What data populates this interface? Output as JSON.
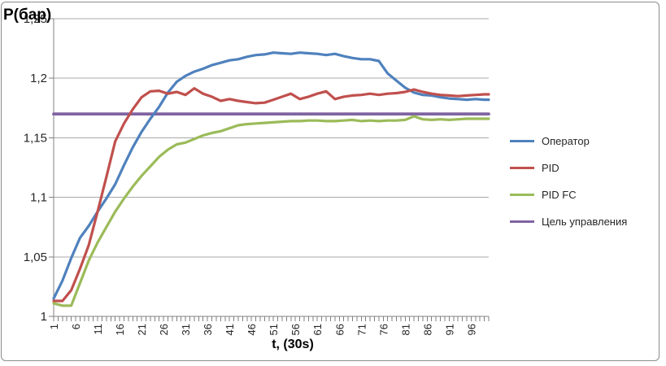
{
  "chart_data": {
    "type": "line",
    "ylabel": "Р(бар)",
    "xlabel": "t, (30s)",
    "grid": true,
    "legend_position": "right",
    "xlim": [
      1,
      100
    ],
    "ylim": [
      1.0,
      1.25
    ],
    "xtick_values": [
      1,
      6,
      11,
      16,
      21,
      26,
      31,
      36,
      41,
      46,
      51,
      56,
      61,
      66,
      71,
      76,
      81,
      86,
      91,
      96
    ],
    "xtick_labels": [
      "1",
      "6",
      "11",
      "16",
      "21",
      "26",
      "31",
      "36",
      "41",
      "46",
      "51",
      "56",
      "61",
      "66",
      "71",
      "76",
      "81",
      "86",
      "91",
      "96"
    ],
    "ytick_values": [
      1.0,
      1.05,
      1.1,
      1.15,
      1.2,
      1.25
    ],
    "ytick_labels": [
      "1",
      "1,05",
      "1,1",
      "1,15",
      "1,2",
      "1,25"
    ],
    "minor_xtick_step": 1,
    "grid_color": "#a8a8a8",
    "axis_color": "#808080",
    "tick_label_color": "#262626",
    "x": [
      1,
      3,
      5,
      7,
      9,
      11,
      13,
      15,
      17,
      19,
      21,
      23,
      25,
      27,
      29,
      31,
      33,
      35,
      37,
      39,
      41,
      43,
      45,
      47,
      49,
      51,
      53,
      55,
      57,
      59,
      61,
      63,
      65,
      67,
      69,
      71,
      73,
      75,
      77,
      79,
      81,
      83,
      85,
      87,
      89,
      91,
      93,
      95,
      97,
      99,
      100
    ],
    "series": [
      {
        "id": "operator",
        "name": "Оператор",
        "color": "#4F81BD",
        "values": [
          1.015,
          1.03,
          1.049,
          1.066,
          1.076,
          1.088,
          1.099,
          1.111,
          1.127,
          1.142,
          1.155,
          1.166,
          1.176,
          1.188,
          1.197,
          1.202,
          1.2055,
          1.208,
          1.211,
          1.213,
          1.215,
          1.216,
          1.218,
          1.2195,
          1.22,
          1.2215,
          1.221,
          1.2205,
          1.2215,
          1.221,
          1.2205,
          1.2195,
          1.2205,
          1.2185,
          1.217,
          1.216,
          1.216,
          1.2145,
          1.204,
          1.198,
          1.192,
          1.188,
          1.186,
          1.1855,
          1.184,
          1.183,
          1.1825,
          1.182,
          1.1825,
          1.182,
          1.182
        ]
      },
      {
        "id": "pid",
        "name": "PID",
        "color": "#C0504D",
        "values": [
          1.013,
          1.013,
          1.022,
          1.04,
          1.06,
          1.088,
          1.117,
          1.147,
          1.162,
          1.174,
          1.184,
          1.189,
          1.1895,
          1.187,
          1.1885,
          1.186,
          1.1915,
          1.187,
          1.1845,
          1.181,
          1.1825,
          1.181,
          1.18,
          1.179,
          1.1795,
          1.182,
          1.1845,
          1.187,
          1.1825,
          1.1845,
          1.187,
          1.189,
          1.1825,
          1.1845,
          1.1855,
          1.186,
          1.187,
          1.186,
          1.187,
          1.1875,
          1.1885,
          1.1905,
          1.1885,
          1.187,
          1.186,
          1.1855,
          1.185,
          1.1855,
          1.186,
          1.1865,
          1.1865
        ]
      },
      {
        "id": "pid-fc",
        "name": "PID FC",
        "color": "#9BBB59",
        "values": [
          1.011,
          1.009,
          1.009,
          1.028,
          1.047,
          1.062,
          1.075,
          1.088,
          1.099,
          1.109,
          1.118,
          1.126,
          1.134,
          1.14,
          1.1445,
          1.146,
          1.149,
          1.152,
          1.154,
          1.1555,
          1.158,
          1.1605,
          1.1615,
          1.162,
          1.1625,
          1.163,
          1.1635,
          1.164,
          1.164,
          1.1645,
          1.1645,
          1.164,
          1.164,
          1.1645,
          1.165,
          1.164,
          1.1645,
          1.164,
          1.1645,
          1.1645,
          1.165,
          1.168,
          1.1655,
          1.165,
          1.1655,
          1.165,
          1.1655,
          1.166,
          1.166,
          1.166,
          1.166
        ]
      },
      {
        "id": "target",
        "name": "Цель управления",
        "color": "#8064A2",
        "x": [
          1,
          100
        ],
        "values": [
          1.17,
          1.17
        ]
      }
    ]
  }
}
